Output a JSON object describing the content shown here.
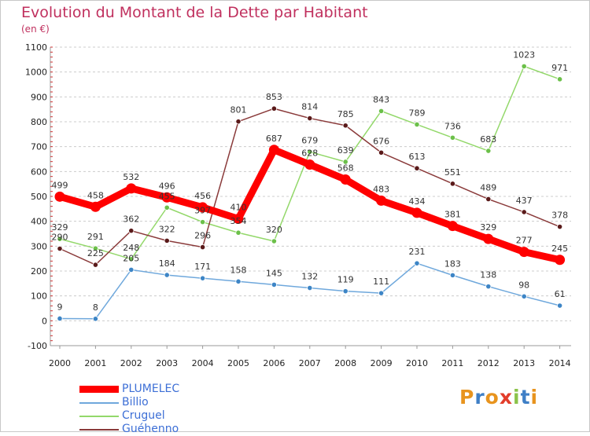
{
  "title": "Evolution du Montant de la Dette par Habitant",
  "subtitle": "(en €)",
  "logo": {
    "text": "Proxiti",
    "colors": [
      "#e8941e",
      "#3f7fc6",
      "#e8941e",
      "#e23d2b",
      "#8bc34a",
      "#3f7fc6",
      "#e8941e"
    ]
  },
  "chart_data": {
    "type": "line",
    "x": [
      "2000",
      "2001",
      "2002",
      "2003",
      "2004",
      "2005",
      "2006",
      "2007",
      "2008",
      "2009",
      "2010",
      "2011",
      "2012",
      "2013",
      "2014"
    ],
    "ylim": [
      -100,
      1100
    ],
    "yticks": [
      -100,
      0,
      100,
      200,
      300,
      400,
      500,
      600,
      700,
      800,
      900,
      1000,
      1100
    ],
    "grid": "horizontal dashed",
    "legend_position": "bottom-left",
    "series": [
      {
        "name": "PLUMELEC",
        "color": "#ff0000",
        "marker": "#ff0000",
        "values": [
          499,
          458,
          532,
          496,
          456,
          410,
          687,
          628,
          568,
          483,
          434,
          381,
          329,
          277,
          245
        ]
      },
      {
        "name": "Billio",
        "color": "#6fa8dc",
        "marker": "#3d85c6",
        "values": [
          9,
          8,
          205,
          184,
          171,
          158,
          145,
          132,
          119,
          111,
          231,
          183,
          138,
          98,
          61
        ]
      },
      {
        "name": "Cruguel",
        "color": "#93d86a",
        "marker": "#6cc04a",
        "values": [
          329,
          291,
          248,
          455,
          397,
          354,
          320,
          679,
          639,
          843,
          789,
          736,
          683,
          1023,
          971
        ]
      },
      {
        "name": "Guéhenno",
        "color": "#8a3a3a",
        "marker": "#5a1a1a",
        "values": [
          290,
          225,
          362,
          322,
          296,
          801,
          853,
          814,
          785,
          676,
          613,
          551,
          489,
          437,
          378
        ]
      }
    ]
  }
}
